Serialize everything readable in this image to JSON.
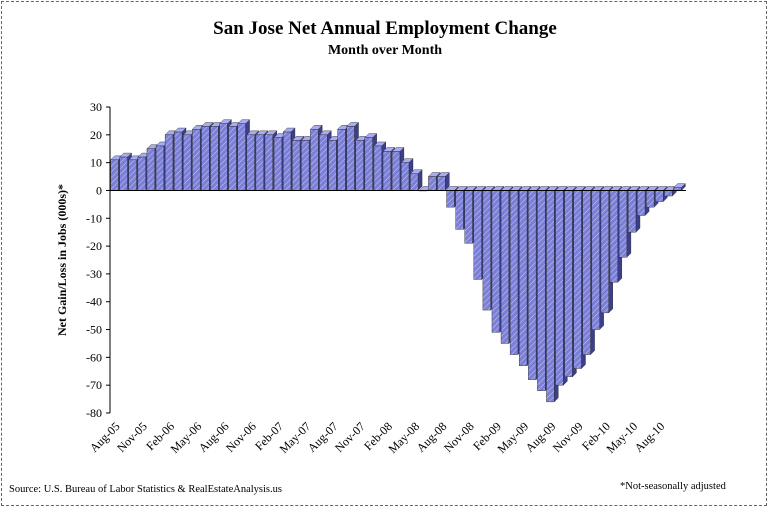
{
  "chart_data": {
    "type": "bar",
    "title": "San Jose Net Annual  Employment  Change",
    "subtitle": "Month over Month",
    "ylabel": "Net Gain/Loss in Jobs (000s)*",
    "xlabel": "",
    "ylim": [
      -80,
      30
    ],
    "yticks": [
      30,
      20,
      10,
      0,
      -10,
      -20,
      -30,
      -40,
      -50,
      -60,
      -70,
      -80
    ],
    "xtick_labels": [
      "Aug-05",
      "Nov-05",
      "Feb-06",
      "May-06",
      "Aug-06",
      "Nov-06",
      "Feb-07",
      "May-07",
      "Aug-07",
      "Nov-07",
      "Feb-08",
      "May-08",
      "Aug-08",
      "Nov-08",
      "Feb-09",
      "May-09",
      "Aug-09",
      "Nov-09",
      "Feb-10",
      "May-10",
      "Aug-10"
    ],
    "categories": [
      "Aug-05",
      "Sep-05",
      "Oct-05",
      "Nov-05",
      "Dec-05",
      "Jan-06",
      "Feb-06",
      "Mar-06",
      "Apr-06",
      "May-06",
      "Jun-06",
      "Jul-06",
      "Aug-06",
      "Sep-06",
      "Oct-06",
      "Nov-06",
      "Dec-06",
      "Jan-07",
      "Feb-07",
      "Mar-07",
      "Apr-07",
      "May-07",
      "Jun-07",
      "Jul-07",
      "Aug-07",
      "Sep-07",
      "Oct-07",
      "Nov-07",
      "Dec-07",
      "Jan-08",
      "Feb-08",
      "Mar-08",
      "Apr-08",
      "May-08",
      "Jun-08",
      "Jul-08",
      "Aug-08",
      "Sep-08",
      "Oct-08",
      "Nov-08",
      "Dec-08",
      "Jan-09",
      "Feb-09",
      "Mar-09",
      "Apr-09",
      "May-09",
      "Jun-09",
      "Jul-09",
      "Aug-09",
      "Sep-09",
      "Oct-09",
      "Nov-09",
      "Dec-09",
      "Jan-10",
      "Feb-10",
      "Mar-10",
      "Apr-10",
      "May-10",
      "Jun-10",
      "Jul-10",
      "Aug-10",
      "Sep-10",
      "Oct-10"
    ],
    "values": [
      11,
      12,
      11,
      12,
      15,
      16,
      20,
      21,
      20,
      22,
      23,
      23,
      24,
      23,
      24,
      20,
      20,
      20,
      19,
      21,
      18,
      18,
      22,
      20,
      18,
      22,
      23,
      18,
      19,
      16,
      14,
      14,
      10,
      6,
      0,
      5,
      5,
      -6,
      -14,
      -19,
      -32,
      -43,
      -51,
      -55,
      -59,
      -63,
      -68,
      -72,
      -76,
      -70,
      -67,
      -64,
      -59,
      -50,
      -44,
      -33,
      -24,
      -15,
      -9,
      -6,
      -4,
      -2,
      1
    ],
    "bar_color": "#7b7fd6",
    "grid": false,
    "legend": "none"
  },
  "footer": {
    "source": "Source: U.S. Bureau of Labor Statistics & RealEstateAnalysis.us",
    "note": "*Not-seasonally adjusted"
  }
}
